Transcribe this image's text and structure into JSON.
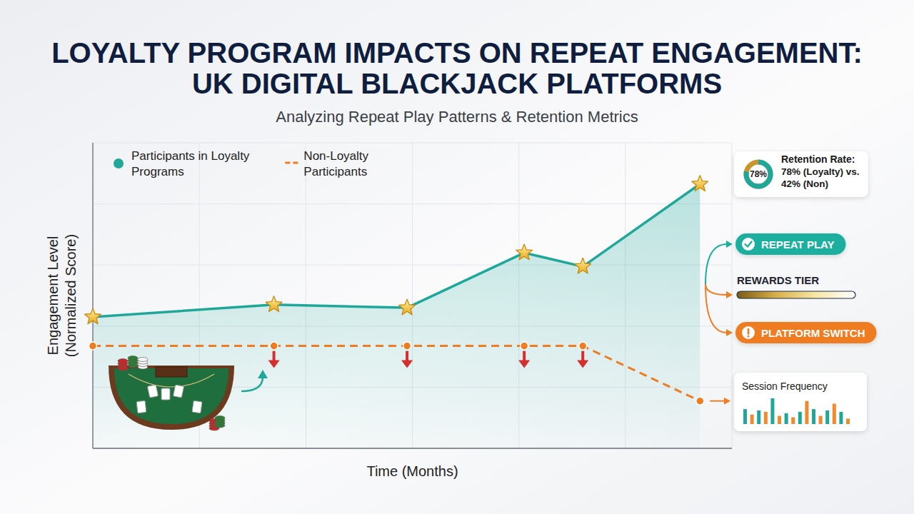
{
  "chart_data": {
    "type": "line",
    "title": "LOYALTY PROGRAM IMPACTS ON REPEAT ENGAGEMENT: UK DIGITAL BLACKJACK PLATFORMS",
    "subtitle": "Analyzing Repeat Play Patterns & Retention Metrics",
    "x_label": "Time (Months)",
    "y_label": "Engagement Level (Normalized Score)",
    "x": [
      0,
      1.7,
      2.95,
      4.05,
      4.6,
      5.7
    ],
    "series": [
      {
        "name": "Participants in Loyalty Programs",
        "color": "#1fa89a",
        "type": "area",
        "marker": "star",
        "line_style": "solid",
        "values": [
          43,
          47,
          46,
          64,
          59.5,
          86.5
        ]
      },
      {
        "name": "Non-Loyalty Participants",
        "color": "#f07c22",
        "type": "line",
        "marker": "circle",
        "line_style": "dashed",
        "values": [
          33.5,
          33.5,
          33.5,
          33.5,
          33.5,
          15.5
        ]
      }
    ],
    "xlim": [
      0,
      6
    ],
    "xticks": [
      0,
      1,
      2,
      3,
      4,
      5,
      6
    ],
    "ylim": [
      0,
      100
    ],
    "yticks": [
      0,
      20,
      40,
      60,
      80,
      100
    ],
    "grid": true,
    "legend": "upper left",
    "tick_labels": false,
    "annotations": {
      "retention": {
        "title": "Retention Rate:",
        "center_label": "78%",
        "value": 78,
        "lines": [
          "78% (Loyalty) vs.",
          "42% (Non)"
        ]
      },
      "outcomes": [
        {
          "label": "REPEAT PLAY",
          "color": "#1aaf9f"
        },
        {
          "label": "REWARDS TIER",
          "colors": [
            "#7a5a14",
            "#d9b04a",
            "#f7e7a6",
            "#ffffff"
          ]
        },
        {
          "label": "PLATFORM SWITCH",
          "color": "#f07c22"
        }
      ],
      "session_frequency": {
        "title": "Session Frequency",
        "values": [
          22,
          14,
          20,
          18,
          38,
          12,
          16,
          10,
          18,
          34,
          22,
          12,
          20,
          30,
          18,
          8
        ],
        "colors": [
          "#1fa89a",
          "#f08a2a",
          "#1fa89a",
          "#f08a2a",
          "#1fa89a",
          "#f08a2a",
          "#1fa89a",
          "#f08a2a",
          "#1fa89a",
          "#f08a2a",
          "#1fa89a",
          "#f08a2a",
          "#1fa89a",
          "#f08a2a",
          "#1fa89a",
          "#f08a2a"
        ],
        "ylim": [
          0,
          40
        ]
      }
    }
  }
}
